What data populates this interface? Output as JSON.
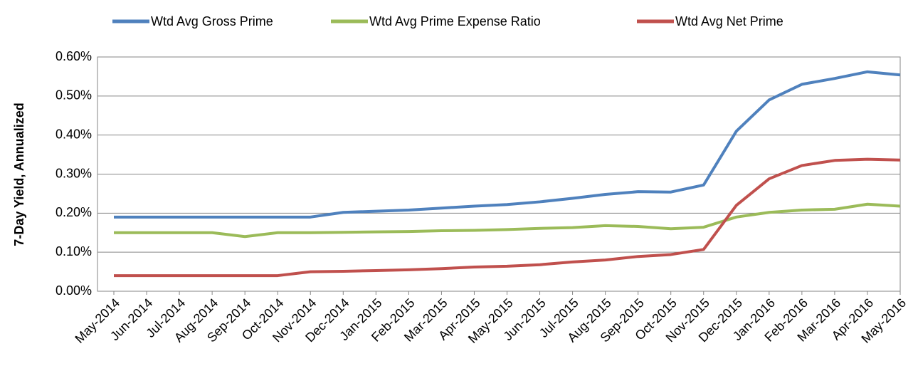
{
  "chart_data": {
    "type": "line",
    "y_label": "7-Day Yield, Annualized",
    "categories": [
      "May-2014",
      "Jun-2014",
      "Jul-2014",
      "Aug-2014",
      "Sep-2014",
      "Oct-2014",
      "Nov-2014",
      "Dec-2014",
      "Jan-2015",
      "Feb-2015",
      "Mar-2015",
      "Apr-2015",
      "May-2015",
      "Jun-2015",
      "Jul-2015",
      "Aug-2015",
      "Sep-2015",
      "Oct-2015",
      "Nov-2015",
      "Dec-2015",
      "Jan-2016",
      "Feb-2016",
      "Mar-2016",
      "Apr-2016",
      "May-2016"
    ],
    "series": [
      {
        "name": "Wtd Avg Gross Prime",
        "color": "#4f81bd",
        "values": [
          0.19,
          0.19,
          0.19,
          0.19,
          0.19,
          0.19,
          0.19,
          0.202,
          0.205,
          0.208,
          0.213,
          0.218,
          0.222,
          0.229,
          0.238,
          0.248,
          0.255,
          0.254,
          0.272,
          0.41,
          0.49,
          0.53,
          0.545,
          0.562,
          0.554
        ]
      },
      {
        "name": "Wtd Avg Prime Expense Ratio",
        "color": "#9bbb59",
        "values": [
          0.15,
          0.15,
          0.15,
          0.15,
          0.14,
          0.15,
          0.15,
          0.151,
          0.152,
          0.153,
          0.155,
          0.156,
          0.158,
          0.161,
          0.163,
          0.168,
          0.166,
          0.16,
          0.164,
          0.19,
          0.202,
          0.208,
          0.21,
          0.223,
          0.218
        ]
      },
      {
        "name": "Wtd Avg Net Prime",
        "color": "#c0504d",
        "values": [
          0.04,
          0.04,
          0.04,
          0.04,
          0.04,
          0.04,
          0.05,
          0.051,
          0.053,
          0.055,
          0.058,
          0.062,
          0.064,
          0.068,
          0.075,
          0.08,
          0.089,
          0.094,
          0.107,
          0.22,
          0.288,
          0.322,
          0.335,
          0.338,
          0.336
        ]
      }
    ],
    "ylim": [
      0,
      0.6
    ],
    "yticks": [
      {
        "value": 0,
        "label": "0.00%"
      },
      {
        "value": 0.1,
        "label": "0.10%"
      },
      {
        "value": 0.2,
        "label": "0.20%"
      },
      {
        "value": 0.3,
        "label": "0.30%"
      },
      {
        "value": 0.4,
        "label": "0.40%"
      },
      {
        "value": 0.5,
        "label": "0.50%"
      },
      {
        "value": 0.6,
        "label": "0.60%"
      }
    ],
    "grid": true,
    "legend": "top"
  }
}
